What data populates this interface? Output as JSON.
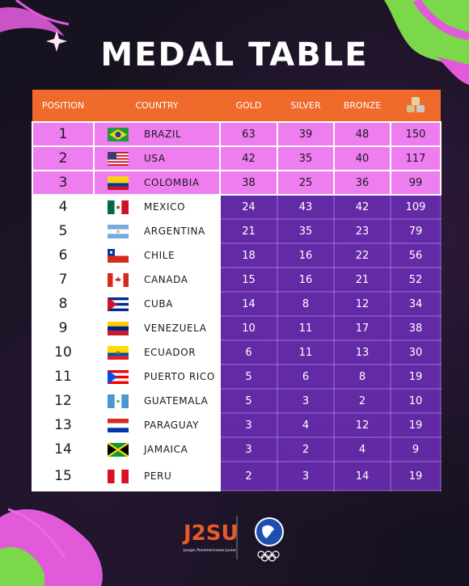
{
  "title": "MEDAL TABLE",
  "colors": {
    "header": "#f06a2b",
    "podium_rows": "#ee7df0",
    "numbers_bg": "#702ebe",
    "deco_green": "#7bd84a",
    "deco_pink": "#e05ad9"
  },
  "headers": {
    "position": "POSITION",
    "country": "COUNTRY",
    "gold": "GOLD",
    "silver": "SILVER",
    "bronze": "BRONZE",
    "total_icon": "stacked-medals-icon"
  },
  "rows": [
    {
      "position": "1",
      "country": "BRAZIL",
      "flag": "brazil-flag-icon",
      "gold": "63",
      "silver": "39",
      "bronze": "48",
      "total": "150"
    },
    {
      "position": "2",
      "country": "USA",
      "flag": "usa-flag-icon",
      "gold": "42",
      "silver": "35",
      "bronze": "40",
      "total": "117"
    },
    {
      "position": "3",
      "country": "COLOMBIA",
      "flag": "colombia-flag-icon",
      "gold": "38",
      "silver": "25",
      "bronze": "36",
      "total": "99"
    },
    {
      "position": "4",
      "country": "MEXICO",
      "flag": "mexico-flag-icon",
      "gold": "24",
      "silver": "43",
      "bronze": "42",
      "total": "109"
    },
    {
      "position": "5",
      "country": "ARGENTINA",
      "flag": "argentina-flag-icon",
      "gold": "21",
      "silver": "35",
      "bronze": "23",
      "total": "79"
    },
    {
      "position": "6",
      "country": "CHILE",
      "flag": "chile-flag-icon",
      "gold": "18",
      "silver": "16",
      "bronze": "22",
      "total": "56"
    },
    {
      "position": "7",
      "country": "CANADA",
      "flag": "canada-flag-icon",
      "gold": "15",
      "silver": "16",
      "bronze": "21",
      "total": "52"
    },
    {
      "position": "8",
      "country": "CUBA",
      "flag": "cuba-flag-icon",
      "gold": "14",
      "silver": "8",
      "bronze": "12",
      "total": "34"
    },
    {
      "position": "9",
      "country": "VENEZUELA",
      "flag": "venezuela-flag-icon",
      "gold": "10",
      "silver": "11",
      "bronze": "17",
      "total": "38"
    },
    {
      "position": "10",
      "country": "ECUADOR",
      "flag": "ecuador-flag-icon",
      "gold": "6",
      "silver": "11",
      "bronze": "13",
      "total": "30"
    },
    {
      "position": "11",
      "country": "PUERTO RICO",
      "flag": "puerto-rico-flag-icon",
      "gold": "5",
      "silver": "6",
      "bronze": "8",
      "total": "19"
    },
    {
      "position": "12",
      "country": "GUATEMALA",
      "flag": "guatemala-flag-icon",
      "gold": "5",
      "silver": "3",
      "bronze": "2",
      "total": "10"
    },
    {
      "position": "13",
      "country": "PARAGUAY",
      "flag": "paraguay-flag-icon",
      "gold": "3",
      "silver": "4",
      "bronze": "12",
      "total": "19"
    },
    {
      "position": "14",
      "country": "JAMAICA",
      "flag": "jamaica-flag-icon",
      "gold": "3",
      "silver": "2",
      "bronze": "4",
      "total": "9"
    },
    {
      "position": "15",
      "country": "PERU",
      "flag": "peru-flag-icon",
      "gold": "2",
      "silver": "3",
      "bronze": "14",
      "total": "19"
    }
  ],
  "logos": {
    "event_logo_text": "J2SU",
    "event_logo_caption": "Juegos Panamericanos Junior",
    "second_logo": "panam-sports-logo",
    "rings": "olympic-rings-icon"
  }
}
